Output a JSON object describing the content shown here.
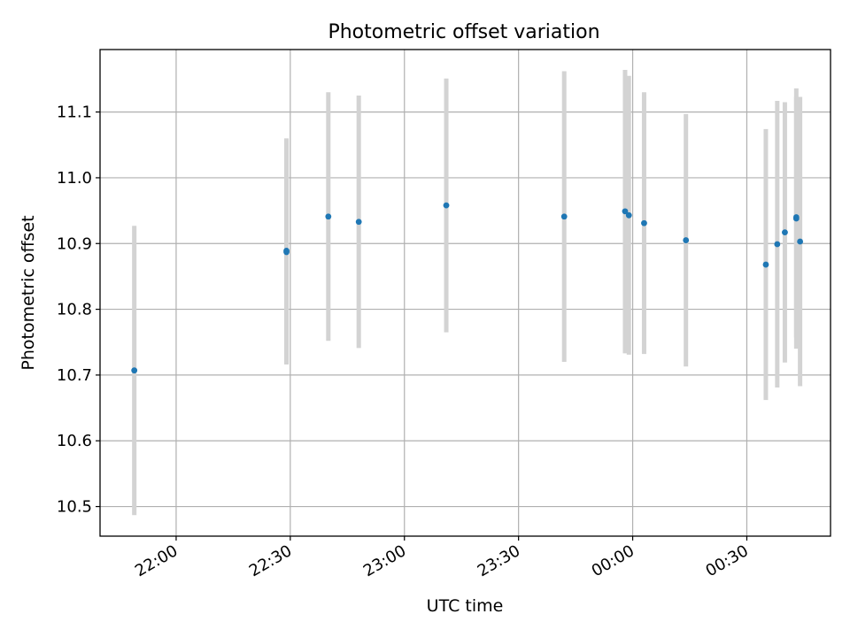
{
  "chart_data": {
    "type": "scatter",
    "title": "Photometric offset variation",
    "xlabel": "UTC time",
    "ylabel": "Photometric offset",
    "xlim": [
      "21:40",
      "00:52"
    ],
    "ylim": [
      10.455,
      11.195
    ],
    "x_ticks": [
      "22:00",
      "22:30",
      "23:00",
      "23:30",
      "00:00",
      "00:30"
    ],
    "y_ticks": [
      "10.5",
      "10.6",
      "10.7",
      "10.8",
      "10.9",
      "11.0",
      "11.1"
    ],
    "grid": true,
    "errorbar_color": "#d3d3d3",
    "marker_color": "#1f77b4",
    "points": [
      {
        "time": "21:49",
        "y": 10.707,
        "ylow": 10.487,
        "yhigh": 10.927
      },
      {
        "time": "22:29",
        "y": 10.887,
        "ylow": 10.716,
        "yhigh": 11.058
      },
      {
        "time": "22:29",
        "y": 10.889,
        "ylow": 10.718,
        "yhigh": 11.06
      },
      {
        "time": "22:40",
        "y": 10.941,
        "ylow": 10.752,
        "yhigh": 11.13
      },
      {
        "time": "22:48",
        "y": 10.933,
        "ylow": 10.741,
        "yhigh": 11.125
      },
      {
        "time": "23:11",
        "y": 10.958,
        "ylow": 10.765,
        "yhigh": 11.151
      },
      {
        "time": "23:42",
        "y": 10.941,
        "ylow": 10.72,
        "yhigh": 11.162
      },
      {
        "time": "23:58",
        "y": 10.949,
        "ylow": 10.733,
        "yhigh": 11.164
      },
      {
        "time": "23:59",
        "y": 10.943,
        "ylow": 10.731,
        "yhigh": 11.155
      },
      {
        "time": "00:03",
        "y": 10.931,
        "ylow": 10.732,
        "yhigh": 11.13
      },
      {
        "time": "00:14",
        "y": 10.905,
        "ylow": 10.713,
        "yhigh": 11.097
      },
      {
        "time": "00:35",
        "y": 10.868,
        "ylow": 10.662,
        "yhigh": 11.074
      },
      {
        "time": "00:38",
        "y": 10.899,
        "ylow": 10.681,
        "yhigh": 11.117
      },
      {
        "time": "00:40",
        "y": 10.917,
        "ylow": 10.719,
        "yhigh": 11.115
      },
      {
        "time": "00:43",
        "y": 10.938,
        "ylow": 10.74,
        "yhigh": 11.136
      },
      {
        "time": "00:43",
        "y": 10.94,
        "ylow": 10.757,
        "yhigh": 11.123
      },
      {
        "time": "00:44",
        "y": 10.903,
        "ylow": 10.683,
        "yhigh": 11.123
      }
    ]
  }
}
